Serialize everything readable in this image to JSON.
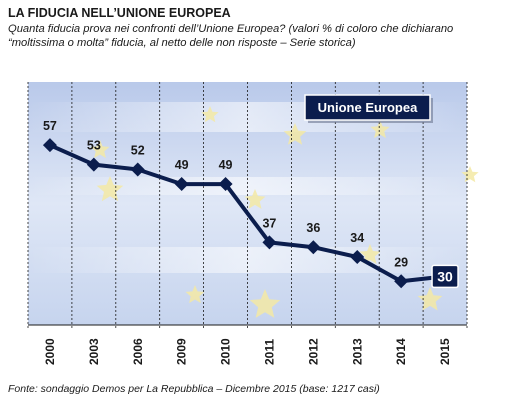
{
  "title": "LA FIDUCIA NELL’UNIONE EUROPEA",
  "subtitle": "Quanta fiducia prova nei confronti dell’Unione Europea? (valori % di coloro che dichiarano “moltissima o molta”  fiducia, al netto delle non risposte – Serie storica)",
  "footer": "Fonte: sondaggio Demos per La Repubblica – Dicembre 2015 (base: 1217 casi)",
  "colors": {
    "line": "#0b1d4d",
    "label_box_bg": "#0b1d4d",
    "background_blue": "#c9d6ef",
    "star": "#f3e9a5"
  },
  "chart_data": {
    "type": "line",
    "categories": [
      "2000",
      "2003",
      "2006",
      "2009",
      "2010",
      "2011",
      "2012",
      "2013",
      "2014",
      "2015"
    ],
    "series": [
      {
        "name": "Unione Europea",
        "values": [
          57,
          53,
          52,
          49,
          49,
          37,
          36,
          34,
          29,
          30
        ]
      }
    ],
    "highlight_last": true,
    "ylim": [
      20,
      70
    ],
    "grid": true
  }
}
